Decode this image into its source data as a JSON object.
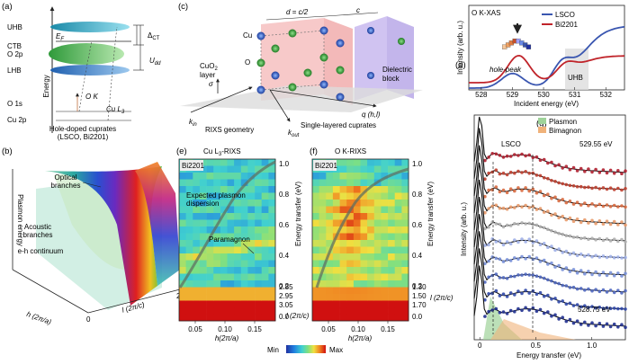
{
  "panels": {
    "a": "(a)",
    "b": "(b)",
    "c": "(c)",
    "d": "(d)",
    "e": "(e)",
    "f": "(f)",
    "g": "(g)"
  },
  "a": {
    "levels": [
      "UHB",
      "CTB",
      "O 2p",
      "LHB",
      "O 1s",
      "Cu 2p"
    ],
    "ef": "E",
    "ef_sub": "F",
    "delta_ct": "Δ",
    "delta_ct_sub": "CT",
    "udd": "U",
    "udd_sub": "dd",
    "energy": "Energy",
    "ok": "O K",
    "cul3": "Cu L",
    "cul3_sub": "3",
    "caption1": "Hole-doped cuprates",
    "caption2": "(LSCO, Bi2201)"
  },
  "b": {
    "optical": "Optical",
    "branches1": "branches",
    "acoustic": "Acoustic",
    "branches2": "branches",
    "eh": "e-h continuum",
    "zaxis": "Plasmon energy",
    "xaxis": "h (2π/a)",
    "yaxis": "l (2π/c)",
    "t0": "0",
    "t1": "1",
    "t2": "2"
  },
  "c": {
    "d_label": "d = c/2",
    "c_label": "c",
    "cu": "Cu",
    "o": "O",
    "cuo2_1": "CuO",
    "cuo2_sub": "2",
    "cuo2_2": "layer",
    "sigma": "σ",
    "kin": "k",
    "kin_sub": "in",
    "kout": "k",
    "kout_sub": "out",
    "rixs_geom": "RIXS geometry",
    "q": "q (h,l)",
    "dielectric1": "Dielectric",
    "dielectric2": "block",
    "single": "Single-layered cuprates"
  },
  "d": {
    "title": "O K-XAS",
    "legend": [
      "LSCO",
      "Bi2201"
    ],
    "colors": [
      "#3a56b0",
      "#c0242a"
    ],
    "ylabel": "Intensity (arb. u.)",
    "xlabel": "Incident energy (eV)",
    "xticks": [
      "528",
      "529",
      "530",
      "531",
      "532"
    ],
    "hole": "hole-peak",
    "uhb": "UHB",
    "panel_sub": "(d)"
  },
  "e": {
    "title": "Cu L",
    "title_sub": "3",
    "title_tail": "-RIXS",
    "sample": "Bi2201",
    "expected1": "Expected plasmon",
    "expected2": "dispersion",
    "paramagnon": "Paramagnon",
    "xticks": [
      "0.05",
      "0.10",
      "0.15"
    ],
    "yticks": [
      "1.0",
      "0.8",
      "0.6",
      "0.4",
      "0.2",
      "0.0"
    ],
    "lticks": [
      "2.85",
      "2.95",
      "3.05"
    ],
    "ylabel": "Energy transfer (eV)",
    "llabel": "l (2π/c)",
    "xlabel": "h(2π/a)"
  },
  "f": {
    "title": "O K-RIXS",
    "sample": "Bi2201",
    "xticks": [
      "0.05",
      "0.10",
      "0.15"
    ],
    "yticks": [
      "1.0",
      "0.8",
      "0.6",
      "0.4",
      "0.2",
      "0.0"
    ],
    "lticks": [
      "1.30",
      "1.50",
      "1.70"
    ],
    "ylabel": "Energy transfer (eV)",
    "llabel": "l (2π/c)",
    "xlabel": "h(2π/a)"
  },
  "colorbar": {
    "min": "Min",
    "max": "Max"
  },
  "g": {
    "legend": [
      "Plasmon",
      "Bimagnon"
    ],
    "legend_colors": [
      "#9fd39a",
      "#f0b27a"
    ],
    "lsco": "LSCO",
    "e_top": "529.55 eV",
    "e_bot": "528.75 eV",
    "ylabel": "Intensity (arb. u.)",
    "xlabel": "Energy transfer (eV)",
    "xticks": [
      "0",
      "0.5",
      "1.0"
    ]
  }
}
